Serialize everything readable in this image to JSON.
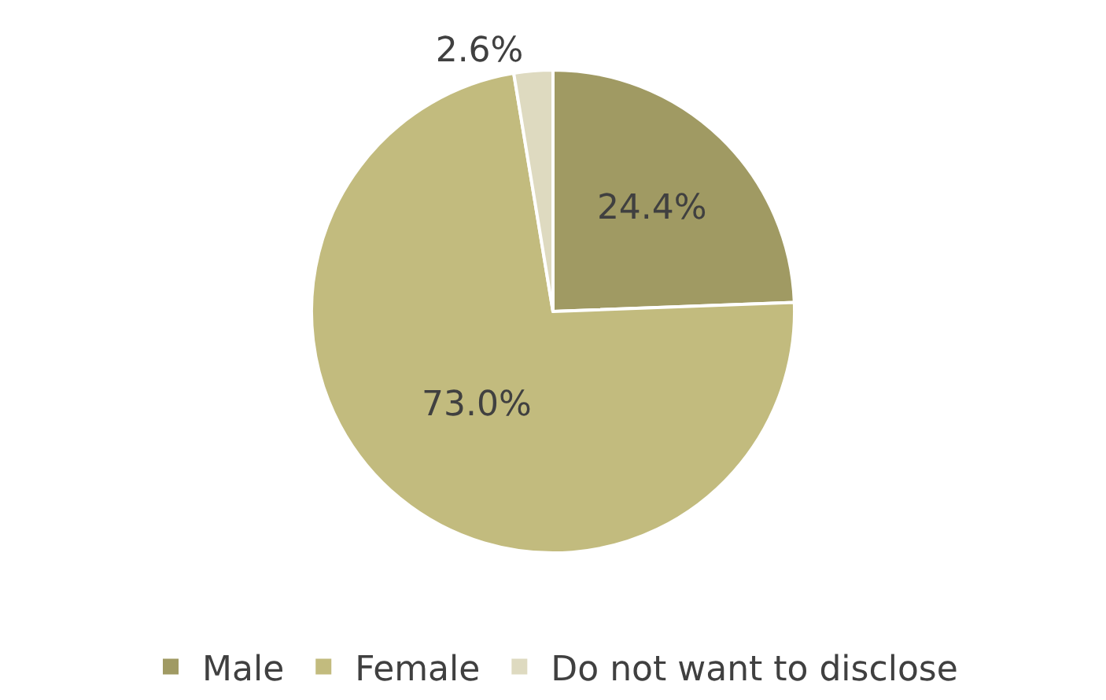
{
  "chart_data": {
    "type": "pie",
    "categories": [
      "Male",
      "Female",
      "Do not want to disclose"
    ],
    "values": [
      24.4,
      73.0,
      2.6
    ],
    "value_labels": [
      "24.4%",
      "73.0%",
      "2.6%"
    ],
    "colors": [
      "#a09a63",
      "#c2bb7e",
      "#dedac0"
    ],
    "legend": "bottom"
  }
}
